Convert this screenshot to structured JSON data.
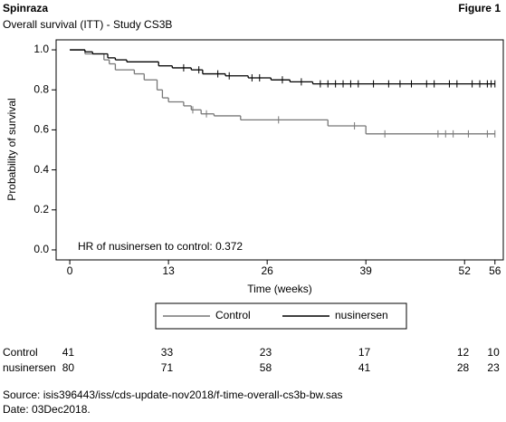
{
  "header": {
    "title": "Spinraza",
    "figure": "Figure 1",
    "subtitle": "Overall survival (ITT) - Study CS3B"
  },
  "chart_data": {
    "type": "km",
    "xlabel": "Time (weeks)",
    "ylabel": "Probability of survival",
    "xlim": [
      -1.8,
      57.1
    ],
    "ylim": [
      -0.05,
      1.05
    ],
    "xticks": [
      0,
      13,
      26,
      39,
      52,
      56
    ],
    "yticks": [
      {
        "value": 0,
        "label": "0.0"
      },
      0.2,
      0.4,
      0.6,
      0.8,
      {
        "value": 1,
        "label": "1.0"
      }
    ],
    "annotation": "HR of nusinersen to control: 0.372",
    "series": [
      {
        "name": "Control",
        "color": "#777777",
        "x": [
          0,
          2,
          4.5,
          5.2,
          6,
          8.5,
          9.8,
          11.5,
          12.2,
          13,
          15,
          16,
          17.3,
          19,
          22.5,
          34,
          39,
          56
        ],
        "values": [
          1,
          0.98,
          0.95,
          0.93,
          0.9,
          0.88,
          0.85,
          0.8,
          0.76,
          0.74,
          0.72,
          0.7,
          0.68,
          0.67,
          0.65,
          0.62,
          0.58,
          0.58
        ],
        "censored": [
          16.2,
          18,
          27.5,
          37.5,
          41.5,
          48.5,
          49.5,
          50.5,
          52.5,
          55,
          56
        ]
      },
      {
        "name": "nusinersen",
        "color": "#000000",
        "x": [
          0,
          2,
          3,
          5,
          6,
          7.5,
          11.7,
          13.5,
          16,
          17.5,
          20.5,
          23.5,
          26.5,
          29,
          32,
          56
        ],
        "values": [
          1,
          0.99,
          0.98,
          0.96,
          0.95,
          0.94,
          0.92,
          0.91,
          0.9,
          0.88,
          0.87,
          0.86,
          0.85,
          0.84,
          0.83,
          0.83
        ],
        "censored": [
          15,
          17,
          19.5,
          21,
          24,
          25,
          28,
          30.5,
          33,
          34,
          35,
          36,
          37,
          38,
          40,
          42,
          43.5,
          45,
          47,
          48,
          50,
          51,
          53,
          54,
          55,
          55.5,
          56
        ]
      }
    ],
    "risk_table": {
      "rows": [
        {
          "name": "Control",
          "values": [
            41,
            33,
            23,
            17,
            12,
            10
          ]
        },
        {
          "name": "nusinersen",
          "values": [
            80,
            71,
            58,
            41,
            28,
            23
          ]
        }
      ]
    }
  },
  "footer": {
    "source": "Source: isis396443/iss/cds-update-nov2018/f-time-overall-cs3b-bw.sas",
    "date": "Date: 03Dec2018."
  }
}
